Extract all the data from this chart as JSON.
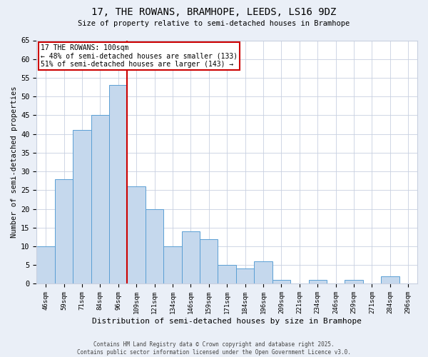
{
  "title1": "17, THE ROWANS, BRAMHOPE, LEEDS, LS16 9DZ",
  "title2": "Size of property relative to semi-detached houses in Bramhope",
  "xlabel": "Distribution of semi-detached houses by size in Bramhope",
  "ylabel": "Number of semi-detached properties",
  "categories": [
    "46sqm",
    "59sqm",
    "71sqm",
    "84sqm",
    "96sqm",
    "109sqm",
    "121sqm",
    "134sqm",
    "146sqm",
    "159sqm",
    "171sqm",
    "184sqm",
    "196sqm",
    "209sqm",
    "221sqm",
    "234sqm",
    "246sqm",
    "259sqm",
    "271sqm",
    "284sqm",
    "296sqm"
  ],
  "values": [
    10,
    28,
    41,
    45,
    53,
    26,
    20,
    10,
    14,
    12,
    5,
    4,
    6,
    1,
    0,
    1,
    0,
    1,
    0,
    2,
    0
  ],
  "bar_color": "#c5d8ed",
  "bar_edge_color": "#5a9fd4",
  "vline_x_pos": 4.5,
  "vline_color": "#cc0000",
  "annotation_title": "17 THE ROWANS: 100sqm",
  "annotation_line1": "← 48% of semi-detached houses are smaller (133)",
  "annotation_line2": "51% of semi-detached houses are larger (143) →",
  "annotation_box_color": "#cc0000",
  "ylim": [
    0,
    65
  ],
  "yticks": [
    0,
    5,
    10,
    15,
    20,
    25,
    30,
    35,
    40,
    45,
    50,
    55,
    60,
    65
  ],
  "footer": "Contains HM Land Registry data © Crown copyright and database right 2025.\nContains public sector information licensed under the Open Government Licence v3.0.",
  "bg_color": "#eaeff7",
  "plot_bg_color": "#ffffff",
  "grid_color": "#c8d0e0"
}
